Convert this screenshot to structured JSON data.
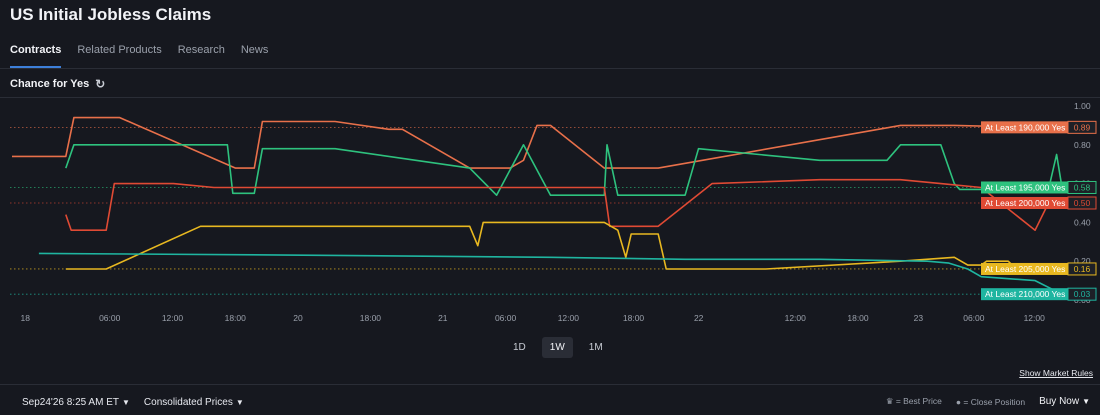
{
  "page": {
    "title": "US Initial Jobless Claims",
    "chance_label": "Chance for Yes"
  },
  "tabs": [
    "Contracts",
    "Related Products",
    "Research",
    "News"
  ],
  "ranges": [
    "1D",
    "1W",
    "1M"
  ],
  "active_range": "1W",
  "rules_label": "Show Market Rules",
  "footer": {
    "datetime": "Sep24'26 8:25 AM ET",
    "pricing": "Consolidated Prices",
    "best_price": "= Best Price",
    "close_position": "= Close Position",
    "buy": "Buy Now"
  },
  "chart_data": {
    "type": "line",
    "x_ticks": [
      "18",
      "06:00",
      "12:00",
      "18:00",
      "20",
      "18:00",
      "21",
      "06:00",
      "12:00",
      "18:00",
      "22",
      "12:00",
      "18:00",
      "23",
      "06:00",
      "12:00"
    ],
    "y_ticks": [
      "1.00",
      "0.80",
      "0.60",
      "0.40",
      "0.20",
      "0.00"
    ],
    "ylim": [
      0,
      1
    ],
    "series": [
      {
        "name": "At Least 190,000 Yes",
        "value_label": "0.89",
        "color": "#e8704a",
        "x": [
          0,
          2,
          2.3,
          4,
          8.3,
          9,
          9.3,
          12,
          14,
          14.5,
          17,
          18.5,
          19,
          19.5,
          20,
          22,
          22.4,
          24,
          33,
          35,
          38,
          39
        ],
        "values": [
          0.74,
          0.74,
          0.94,
          0.94,
          0.68,
          0.68,
          0.92,
          0.92,
          0.88,
          0.88,
          0.68,
          0.68,
          0.72,
          0.9,
          0.9,
          0.68,
          0.68,
          0.68,
          0.9,
          0.9,
          0.89,
          0.89
        ]
      },
      {
        "name": "At Least 195,000 Yes",
        "value_label": "0.58",
        "color": "#2ec27e",
        "x": [
          2,
          2.3,
          8,
          8.2,
          9,
          9.3,
          12,
          17,
          18,
          19,
          20,
          20.4,
          22,
          22.1,
          22.5,
          25,
          25.5,
          30,
          31,
          32.5,
          33,
          34.5,
          35,
          35.2,
          36,
          36.5,
          36.8,
          38.5,
          38.8,
          39
        ],
        "values": [
          0.68,
          0.8,
          0.8,
          0.55,
          0.55,
          0.78,
          0.78,
          0.68,
          0.54,
          0.8,
          0.54,
          0.54,
          0.54,
          0.8,
          0.54,
          0.54,
          0.78,
          0.72,
          0.72,
          0.72,
          0.8,
          0.8,
          0.6,
          0.57,
          0.57,
          0.6,
          0.57,
          0.57,
          0.75,
          0.58
        ]
      },
      {
        "name": "At Least 200,000 Yes",
        "value_label": "0.50",
        "color": "#e04a34",
        "x": [
          2,
          2.2,
          3.5,
          3.8,
          6,
          7.5,
          22,
          22.2,
          24,
          26,
          30,
          33,
          34.5,
          36,
          38,
          38.5
        ],
        "values": [
          0.44,
          0.36,
          0.36,
          0.6,
          0.6,
          0.58,
          0.58,
          0.38,
          0.38,
          0.6,
          0.62,
          0.62,
          0.6,
          0.58,
          0.36,
          0.5
        ]
      },
      {
        "name": "At Least 205,000 Yes",
        "value_label": "0.16",
        "color": "#e8b820",
        "x": [
          2,
          3.5,
          7,
          9,
          12,
          17,
          17.3,
          17.5,
          22,
          22.5,
          22.8,
          23,
          24,
          24.3,
          28,
          33,
          35,
          35.5,
          36,
          36.2,
          37,
          37.3,
          39
        ],
        "values": [
          0.16,
          0.16,
          0.38,
          0.38,
          0.38,
          0.38,
          0.28,
          0.4,
          0.4,
          0.36,
          0.22,
          0.34,
          0.34,
          0.16,
          0.16,
          0.2,
          0.22,
          0.18,
          0.18,
          0.2,
          0.2,
          0.16,
          0.16
        ]
      },
      {
        "name": "At Least 210,000 Yes",
        "value_label": "0.03",
        "color": "#1fb5a0",
        "x": [
          1,
          12,
          20,
          25,
          30,
          34,
          34.8,
          35.5,
          36,
          38,
          39
        ],
        "values": [
          0.24,
          0.23,
          0.22,
          0.21,
          0.21,
          0.2,
          0.19,
          0.16,
          0.12,
          0.1,
          0.03
        ]
      }
    ]
  }
}
